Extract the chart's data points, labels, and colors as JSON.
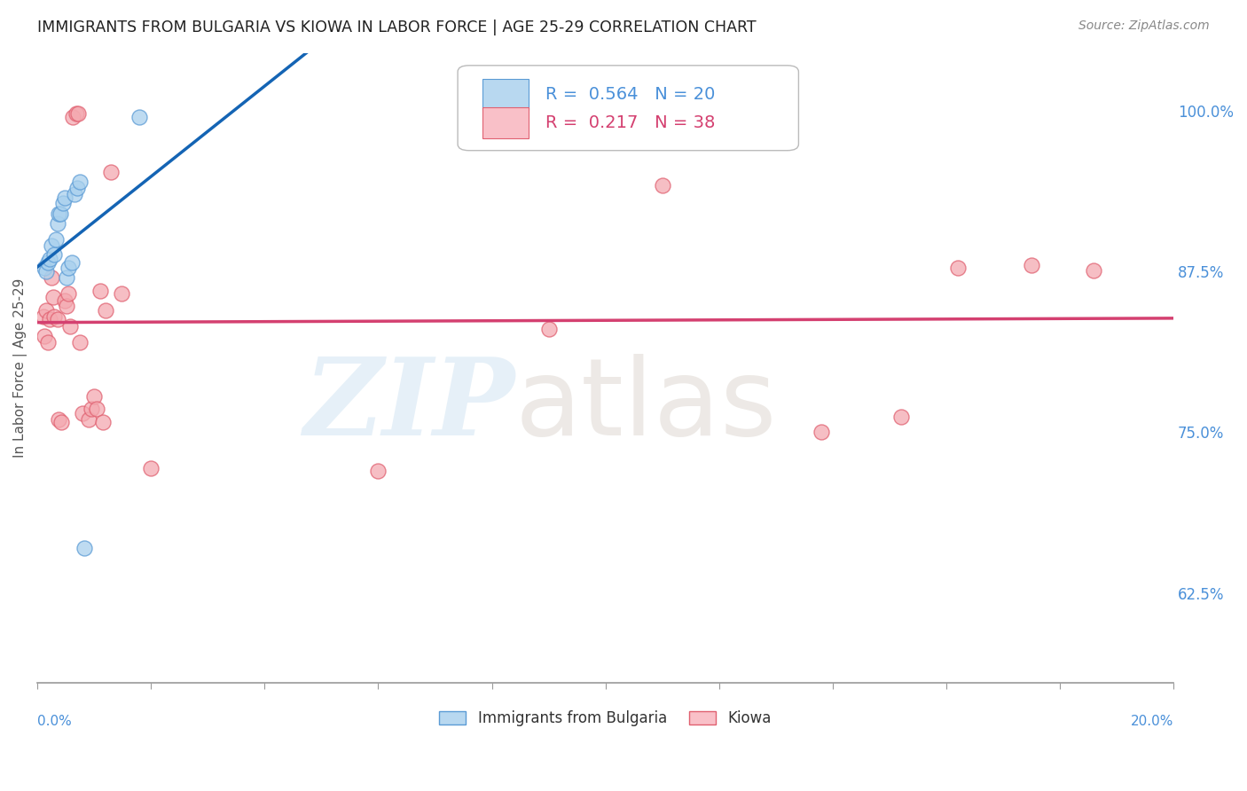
{
  "title": "IMMIGRANTS FROM BULGARIA VS KIOWA IN LABOR FORCE | AGE 25-29 CORRELATION CHART",
  "source": "Source: ZipAtlas.com",
  "ylabel": "In Labor Force | Age 25-29",
  "ylabel_right_ticks": [
    0.625,
    0.75,
    0.875,
    1.0
  ],
  "ylabel_right_labels": [
    "62.5%",
    "75.0%",
    "87.5%",
    "100.0%"
  ],
  "xlim": [
    0.0,
    0.2
  ],
  "ylim": [
    0.555,
    1.045
  ],
  "bulgaria_color": "#a8d0ed",
  "bulgaria_edge": "#5b9bd5",
  "kiowa_color": "#f4a9b0",
  "kiowa_edge": "#e06070",
  "legend_box_color_bulgaria": "#b8d8f0",
  "legend_box_color_kiowa": "#f9c0c8",
  "trend_bulgaria_color": "#1464b4",
  "trend_kiowa_color": "#d44070",
  "R_bulgaria": 0.564,
  "N_bulgaria": 20,
  "R_kiowa": 0.217,
  "N_kiowa": 38,
  "watermark_zip": "ZIP",
  "watermark_atlas": "atlas",
  "grid_color": "#cccccc",
  "bg_color": "#ffffff",
  "title_color": "#222222",
  "tick_label_color": "#4a90d9",
  "bulgaria_x": [
    0.0012,
    0.0015,
    0.0018,
    0.0022,
    0.0025,
    0.003,
    0.0032,
    0.0035,
    0.0038,
    0.004,
    0.0045,
    0.0048,
    0.0052,
    0.0055,
    0.006,
    0.0065,
    0.007,
    0.0075,
    0.0082,
    0.018
  ],
  "bulgaria_y": [
    0.878,
    0.875,
    0.882,
    0.885,
    0.895,
    0.888,
    0.9,
    0.912,
    0.92,
    0.92,
    0.928,
    0.932,
    0.87,
    0.878,
    0.882,
    0.935,
    0.94,
    0.945,
    0.66,
    0.995
  ],
  "kiowa_x": [
    0.001,
    0.0012,
    0.0015,
    0.0018,
    0.0022,
    0.0025,
    0.0028,
    0.003,
    0.0035,
    0.0038,
    0.0042,
    0.0048,
    0.0052,
    0.0055,
    0.0058,
    0.0062,
    0.0068,
    0.0072,
    0.0075,
    0.008,
    0.009,
    0.0095,
    0.01,
    0.0105,
    0.011,
    0.0115,
    0.012,
    0.013,
    0.0148,
    0.02,
    0.06,
    0.09,
    0.11,
    0.138,
    0.152,
    0.162,
    0.175,
    0.186
  ],
  "kiowa_y": [
    0.84,
    0.825,
    0.845,
    0.82,
    0.838,
    0.87,
    0.855,
    0.84,
    0.838,
    0.76,
    0.758,
    0.852,
    0.848,
    0.858,
    0.832,
    0.995,
    0.998,
    0.998,
    0.82,
    0.765,
    0.76,
    0.768,
    0.778,
    0.768,
    0.86,
    0.758,
    0.845,
    0.952,
    0.858,
    0.722,
    0.72,
    0.83,
    0.942,
    0.75,
    0.762,
    0.878,
    0.88,
    0.876
  ]
}
